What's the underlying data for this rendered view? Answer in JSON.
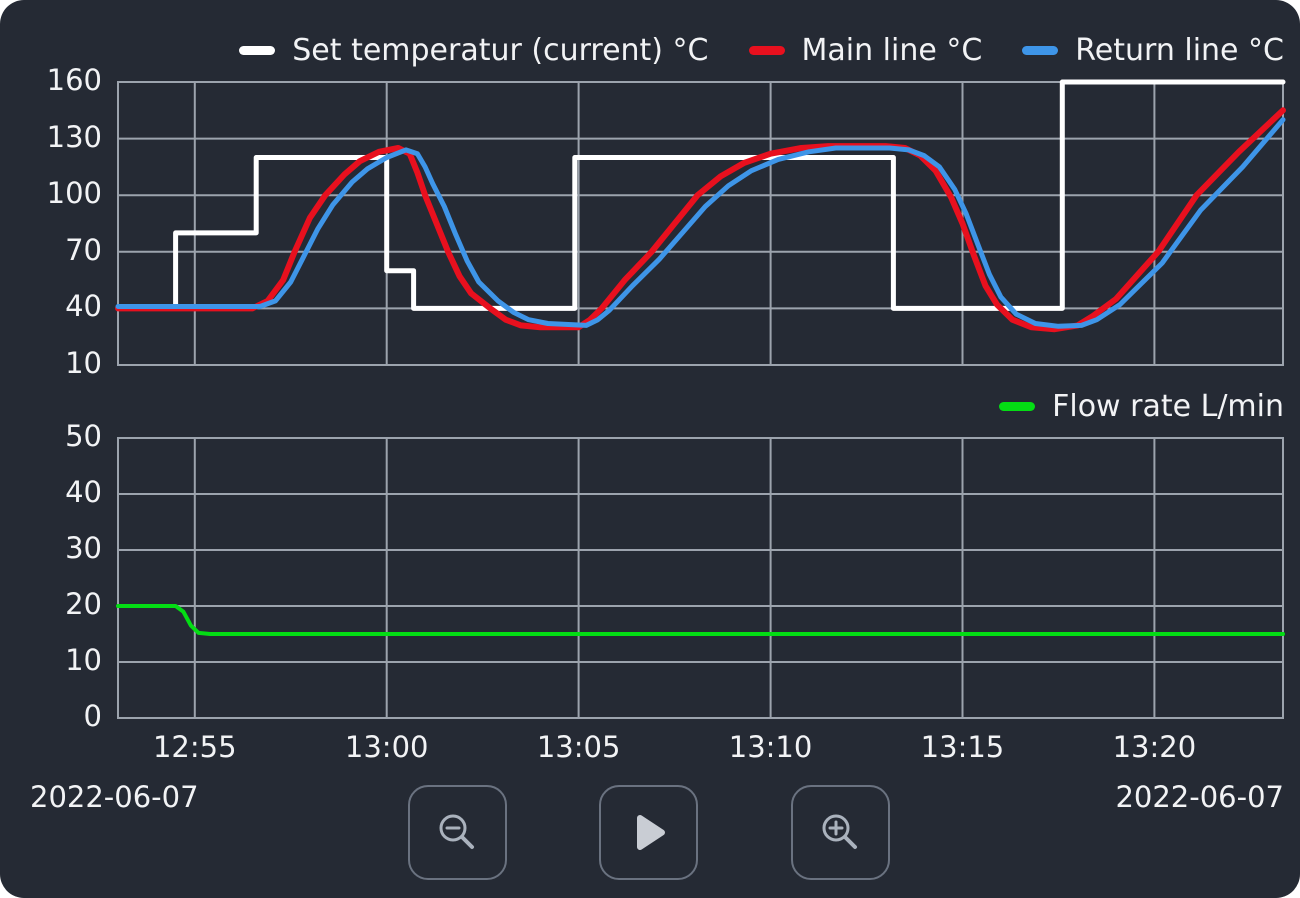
{
  "page": {
    "panel_bg": "#252a34",
    "grid_color": "#9ca3ad",
    "text_color": "#f2f3f5",
    "button_border_color": "#6a7280",
    "button_icon_color": "#aab2bd"
  },
  "dates": {
    "left": "2022-06-07",
    "right": "2022-06-07"
  },
  "toolbar": {
    "buttons": [
      {
        "name": "zoom-out",
        "icon": "magnifier-minus-icon"
      },
      {
        "name": "play",
        "icon": "play-icon"
      },
      {
        "name": "zoom-in",
        "icon": "magnifier-plus-icon"
      }
    ]
  },
  "chart_data": [
    {
      "type": "line",
      "title": "",
      "ylim": [
        10,
        160
      ],
      "yticks": [
        10,
        40,
        70,
        100,
        130,
        160
      ],
      "grid": true,
      "legend_position": "top-right",
      "x": {
        "unit": "time-of-day",
        "start_time": "12:53",
        "end_time": "13:23",
        "range_minutes": [
          0,
          30.35
        ],
        "tick_minutes": [
          2,
          7,
          12,
          17,
          22,
          27
        ],
        "tick_labels": [
          "12:55",
          "13:00",
          "13:05",
          "13:10",
          "13:15",
          "13:20"
        ]
      },
      "series": [
        {
          "name": "Set temperatur (current) °C",
          "color": "#ffffff",
          "points": [
            [
              0,
              40
            ],
            [
              1.5,
              40
            ],
            [
              1.5,
              80
            ],
            [
              3.6,
              80
            ],
            [
              3.6,
              120
            ],
            [
              7,
              120
            ],
            [
              7,
              60
            ],
            [
              7.7,
              60
            ],
            [
              7.7,
              40
            ],
            [
              11.9,
              40
            ],
            [
              11.9,
              120
            ],
            [
              20.2,
              120
            ],
            [
              20.2,
              40
            ],
            [
              24.6,
              40
            ],
            [
              24.6,
              160
            ],
            [
              30.35,
              160
            ]
          ]
        },
        {
          "name": "Main line °C",
          "color": "#e8101e",
          "points": [
            [
              0,
              40
            ],
            [
              3.5,
              40
            ],
            [
              3.9,
              44
            ],
            [
              4.3,
              55
            ],
            [
              4.6,
              70
            ],
            [
              5,
              88
            ],
            [
              5.4,
              100
            ],
            [
              5.9,
              111
            ],
            [
              6.3,
              118
            ],
            [
              6.8,
              123
            ],
            [
              7.3,
              125
            ],
            [
              7.6,
              122
            ],
            [
              7.8,
              112
            ],
            [
              8,
              100
            ],
            [
              8.3,
              85
            ],
            [
              8.6,
              70
            ],
            [
              8.9,
              57
            ],
            [
              9.2,
              48
            ],
            [
              9.7,
              40
            ],
            [
              10.1,
              34
            ],
            [
              10.5,
              31
            ],
            [
              11,
              30
            ],
            [
              12,
              30
            ],
            [
              12.3,
              34
            ],
            [
              12.6,
              40
            ],
            [
              13.2,
              55
            ],
            [
              13.9,
              70
            ],
            [
              14.5,
              85
            ],
            [
              15.1,
              100
            ],
            [
              15.7,
              110
            ],
            [
              16.3,
              117
            ],
            [
              17,
              122
            ],
            [
              17.8,
              125
            ],
            [
              18.5,
              126
            ],
            [
              20,
              126
            ],
            [
              20.5,
              125
            ],
            [
              20.9,
              121
            ],
            [
              21.3,
              113
            ],
            [
              21.7,
              99
            ],
            [
              22,
              85
            ],
            [
              22.3,
              68
            ],
            [
              22.6,
              52
            ],
            [
              22.9,
              42
            ],
            [
              23.3,
              34
            ],
            [
              23.8,
              30
            ],
            [
              24.4,
              29
            ],
            [
              25,
              31
            ],
            [
              25.4,
              36
            ],
            [
              26,
              45
            ],
            [
              27.1,
              70
            ],
            [
              28.1,
              100
            ],
            [
              29.2,
              123
            ],
            [
              30.35,
              145
            ]
          ]
        },
        {
          "name": "Return line °C",
          "color": "#3e95e8",
          "points": [
            [
              0,
              41
            ],
            [
              3.7,
              41
            ],
            [
              4.1,
              44
            ],
            [
              4.5,
              54
            ],
            [
              4.8,
              66
            ],
            [
              5.2,
              82
            ],
            [
              5.6,
              95
            ],
            [
              6.1,
              107
            ],
            [
              6.5,
              114
            ],
            [
              7,
              120
            ],
            [
              7.5,
              124
            ],
            [
              7.8,
              122
            ],
            [
              8,
              115
            ],
            [
              8.2,
              106
            ],
            [
              8.5,
              94
            ],
            [
              8.8,
              79
            ],
            [
              9.1,
              65
            ],
            [
              9.4,
              54
            ],
            [
              9.9,
              44
            ],
            [
              10.3,
              38
            ],
            [
              10.7,
              34
            ],
            [
              11.2,
              32
            ],
            [
              12.2,
              31
            ],
            [
              12.5,
              34
            ],
            [
              12.8,
              39
            ],
            [
              13.4,
              52
            ],
            [
              14.1,
              66
            ],
            [
              14.7,
              80
            ],
            [
              15.3,
              94
            ],
            [
              15.9,
              105
            ],
            [
              16.5,
              113
            ],
            [
              17.2,
              119
            ],
            [
              18,
              123
            ],
            [
              18.7,
              125
            ],
            [
              20.1,
              125
            ],
            [
              20.6,
              124
            ],
            [
              21,
              121
            ],
            [
              21.4,
              115
            ],
            [
              21.8,
              103
            ],
            [
              22.1,
              90
            ],
            [
              22.4,
              74
            ],
            [
              22.7,
              58
            ],
            [
              23,
              46
            ],
            [
              23.4,
              37
            ],
            [
              23.9,
              32
            ],
            [
              24.5,
              30.5
            ],
            [
              25.1,
              31
            ],
            [
              25.5,
              34
            ],
            [
              26.1,
              42
            ],
            [
              27.2,
              64
            ],
            [
              28.2,
              92
            ],
            [
              29.3,
              115
            ],
            [
              30.35,
              140
            ]
          ]
        }
      ]
    },
    {
      "type": "line",
      "title": "",
      "ylim": [
        0,
        50
      ],
      "yticks": [
        0,
        10,
        20,
        30,
        40,
        50
      ],
      "grid": true,
      "legend_position": "top-right",
      "x": {
        "shared_with_chart": 0
      },
      "series": [
        {
          "name": "Flow rate L/min",
          "color": "#04dd14",
          "points": [
            [
              0,
              20
            ],
            [
              1.5,
              20
            ],
            [
              1.7,
              19
            ],
            [
              1.9,
              16.5
            ],
            [
              2.1,
              15.2
            ],
            [
              2.4,
              15
            ],
            [
              30.35,
              15
            ]
          ]
        }
      ]
    }
  ]
}
